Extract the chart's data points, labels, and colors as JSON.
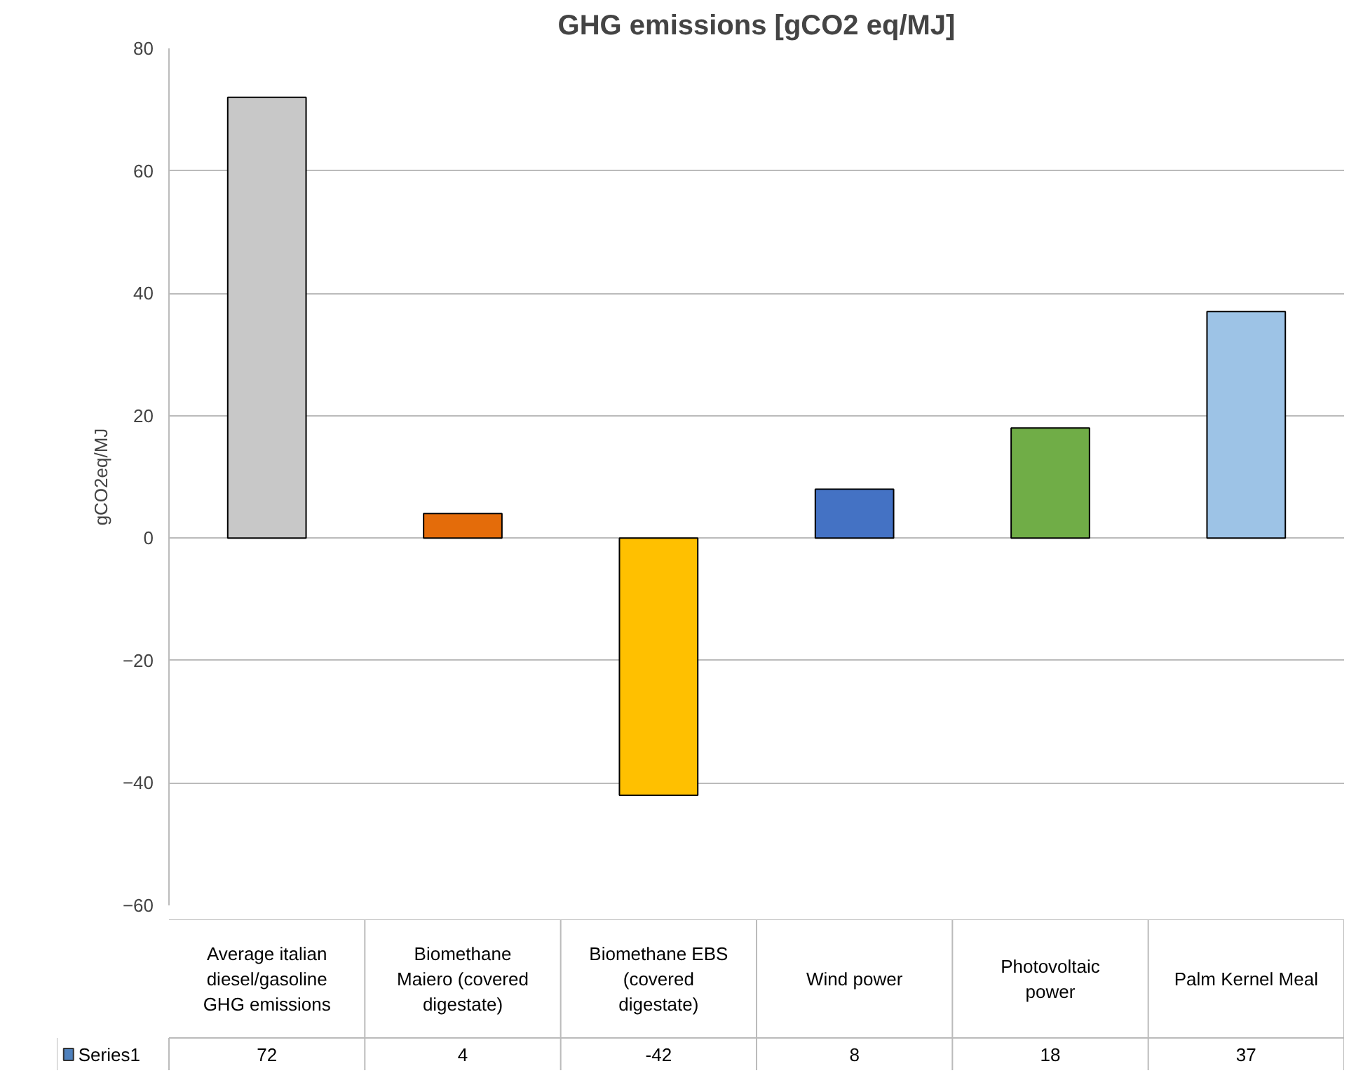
{
  "chart_data": {
    "type": "bar",
    "title": "GHG emissions [gCO2 eq/MJ]",
    "ylabel": "gCO2eq/MJ",
    "categories": [
      "Average italian diesel/gasoline GHG emissions",
      "Biomethane Maiero (covered digestate)",
      "Biomethane EBS (covered digestate)",
      "Wind power",
      "Photovoltaic power",
      "Palm Kernel Meal"
    ],
    "series": [
      {
        "name": "Series1",
        "color": "#4f81bd",
        "colors": [
          "#c8c8c8",
          "#e46c0a",
          "#ffc000",
          "#4472c4",
          "#70ad47",
          "#9dc3e6"
        ],
        "values": [
          72,
          4,
          -42,
          8,
          18,
          37
        ]
      }
    ],
    "ylim": [
      -60,
      80
    ],
    "yticks": [
      -60,
      -40,
      -20,
      0,
      20,
      40,
      60,
      80
    ],
    "grid": "y",
    "data_labels": true,
    "legend": "bottom left"
  }
}
